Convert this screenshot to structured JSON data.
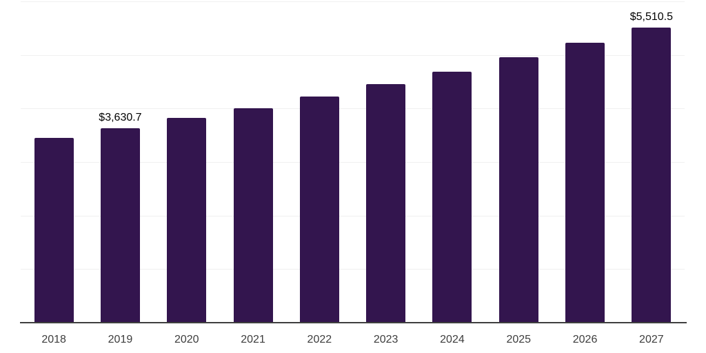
{
  "chart_data": {
    "type": "bar",
    "title": "",
    "xlabel": "",
    "ylabel": "",
    "categories": [
      "2018",
      "2019",
      "2020",
      "2021",
      "2022",
      "2023",
      "2024",
      "2025",
      "2026",
      "2027"
    ],
    "values": [
      3450,
      3630.7,
      3820,
      4010,
      4220,
      4450,
      4690,
      4960,
      5230,
      5510.5
    ],
    "data_labels": {
      "2019": "$3,630.7",
      "2027": "$5,510.5"
    },
    "ylim": [
      0,
      6000
    ],
    "gridline_interval": 1000,
    "grid": true,
    "legend_position": "none",
    "bar_color": "#33154e",
    "axis_color": "#3f3f3f",
    "gridline_color": "#f0f0f0",
    "tick_label_color": "#3d3d3d",
    "data_label_color": "#000000",
    "background_color": "#ffffff"
  }
}
